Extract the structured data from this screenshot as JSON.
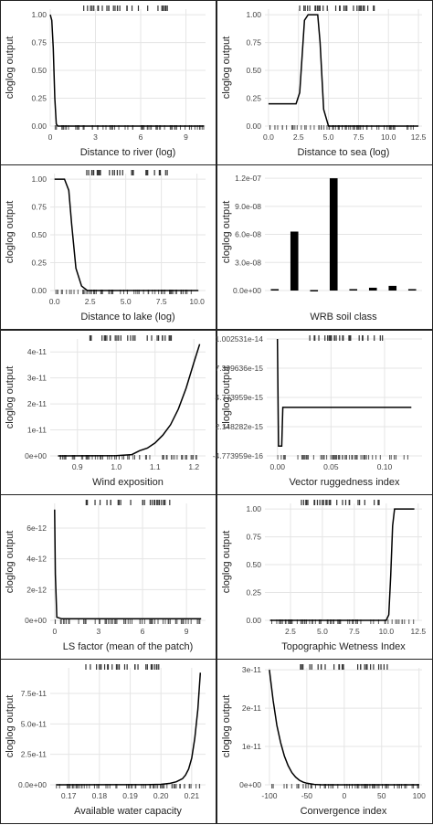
{
  "chart_data": [
    {
      "type": "line",
      "xlabel": "Distance to river (log)",
      "ylabel": "cloglog output",
      "xlim": [
        0,
        10.3
      ],
      "ylim": [
        0,
        1.05
      ],
      "xticks": [
        {
          "v": 0,
          "l": "0"
        },
        {
          "v": 3,
          "l": "3"
        },
        {
          "v": 6,
          "l": "6"
        },
        {
          "v": 9,
          "l": "9"
        }
      ],
      "yticks": [
        {
          "v": 0,
          "l": "0.00"
        },
        {
          "v": 0.25,
          "l": "0.25"
        },
        {
          "v": 0.5,
          "l": "0.50"
        },
        {
          "v": 0.75,
          "l": "0.75"
        },
        {
          "v": 1,
          "l": "1.00"
        }
      ],
      "x": [
        0,
        0.1,
        0.2,
        0.3,
        0.4,
        0.5,
        10.2
      ],
      "y": [
        1.0,
        0.95,
        0.7,
        0.25,
        0.02,
        0.0,
        0.0
      ]
    },
    {
      "type": "line",
      "xlabel": "Distance to sea (log)",
      "ylabel": "cloglog output",
      "xlim": [
        -0.3,
        12.8
      ],
      "ylim": [
        0,
        1.05
      ],
      "xticks": [
        {
          "v": 0,
          "l": "0.0"
        },
        {
          "v": 2.5,
          "l": "2.5"
        },
        {
          "v": 5,
          "l": "5.0"
        },
        {
          "v": 7.5,
          "l": "7.5"
        },
        {
          "v": 10,
          "l": "10.0"
        },
        {
          "v": 12.5,
          "l": "12.5"
        }
      ],
      "yticks": [
        {
          "v": 0,
          "l": "0.00"
        },
        {
          "v": 0.25,
          "l": "0.25"
        },
        {
          "v": 0.5,
          "l": "0.50"
        },
        {
          "v": 0.75,
          "l": "0.75"
        },
        {
          "v": 1,
          "l": "1.00"
        }
      ],
      "x": [
        0,
        2.3,
        2.6,
        3.0,
        3.3,
        4.1,
        4.3,
        4.6,
        5.0,
        12.5
      ],
      "y": [
        0.2,
        0.2,
        0.3,
        0.95,
        1.0,
        1.0,
        0.75,
        0.15,
        0.0,
        0.0
      ]
    },
    {
      "type": "line",
      "xlabel": "Distance to lake (log)",
      "ylabel": "cloglog output",
      "xlim": [
        -0.3,
        10.6
      ],
      "ylim": [
        0,
        1.05
      ],
      "xticks": [
        {
          "v": 0,
          "l": "0.0"
        },
        {
          "v": 2.5,
          "l": "2.5"
        },
        {
          "v": 5,
          "l": "5.0"
        },
        {
          "v": 7.5,
          "l": "7.5"
        },
        {
          "v": 10,
          "l": "10.0"
        }
      ],
      "yticks": [
        {
          "v": 0,
          "l": "0.00"
        },
        {
          "v": 0.25,
          "l": "0.25"
        },
        {
          "v": 0.5,
          "l": "0.50"
        },
        {
          "v": 0.75,
          "l": "0.75"
        },
        {
          "v": 1,
          "l": "1.00"
        }
      ],
      "x": [
        0,
        0.7,
        1.0,
        1.2,
        1.5,
        1.9,
        2.3,
        10.1
      ],
      "y": [
        1.0,
        1.0,
        0.9,
        0.6,
        0.2,
        0.04,
        0.0,
        0.0
      ]
    },
    {
      "type": "bar",
      "xlabel": "WRB soil class",
      "ylabel": "cloglog output",
      "ylim": [
        0,
        1.25e-07
      ],
      "yticks": [
        {
          "v": 0,
          "l": "0.0e+00"
        },
        {
          "v": 3e-08,
          "l": "3.0e-08"
        },
        {
          "v": 6e-08,
          "l": "6.0e-08"
        },
        {
          "v": 9e-08,
          "l": "9.0e-08"
        },
        {
          "v": 1.2e-07,
          "l": "1.2e-07"
        }
      ],
      "values": [
        1.5e-09,
        6.3e-08,
        5e-10,
        1.2e-07,
        1.5e-09,
        3e-09,
        5e-09,
        1.5e-09
      ]
    },
    {
      "type": "line",
      "xlabel": "Wind exposition",
      "ylabel": "cloglog output",
      "xlim": [
        0.83,
        1.23
      ],
      "ylim": [
        0,
        4.5e-11
      ],
      "xticks": [
        {
          "v": 0.9,
          "l": "0.9"
        },
        {
          "v": 1.0,
          "l": "1.0"
        },
        {
          "v": 1.1,
          "l": "1.1"
        },
        {
          "v": 1.2,
          "l": "1.2"
        }
      ],
      "yticks": [
        {
          "v": 0,
          "l": "0e+00"
        },
        {
          "v": 1e-11,
          "l": "1e-11"
        },
        {
          "v": 2e-11,
          "l": "2e-11"
        },
        {
          "v": 3e-11,
          "l": "3e-11"
        },
        {
          "v": 4e-11,
          "l": "4e-11"
        }
      ],
      "x": [
        0.85,
        1.0,
        1.04,
        1.06,
        1.08,
        1.1,
        1.12,
        1.14,
        1.16,
        1.18,
        1.2,
        1.215
      ],
      "y": [
        0,
        1e-13,
        5e-13,
        2e-12,
        3e-12,
        5e-12,
        8e-12,
        1.2e-11,
        1.8e-11,
        2.6e-11,
        3.6e-11,
        4.3e-11
      ]
    },
    {
      "type": "line",
      "xlabel": "Vector ruggedness index",
      "ylabel": "cloglog output",
      "xlim": [
        -0.01,
        0.135
      ],
      "ylim": [
        -4.773959e-16,
        1.002531e-14
      ],
      "xticks": [
        {
          "v": 0,
          "l": "0.00"
        },
        {
          "v": 0.05,
          "l": "0.05"
        },
        {
          "v": 0.1,
          "l": "0.10"
        }
      ],
      "yticks": [
        {
          "v": -4.773959e-16,
          "l": "-4.773959e-16"
        },
        {
          "v": 2.148282e-15,
          "l": "2.148282e-15"
        },
        {
          "v": 4.773959e-15,
          "l": "4.773959e-15"
        },
        {
          "v": 7.399636e-15,
          "l": "7.399636e-15"
        },
        {
          "v": 1.002531e-14,
          "l": "1.002531e-14"
        }
      ],
      "x": [
        0,
        0.001,
        0.004,
        0.005,
        0.125
      ],
      "y": [
        1.002531e-14,
        4e-16,
        4e-16,
        3.88e-15,
        3.88e-15
      ]
    },
    {
      "type": "line",
      "xlabel": "LS factor (mean of the patch)",
      "ylabel": "cloglog output",
      "xlim": [
        -0.3,
        10.3
      ],
      "ylim": [
        0,
        7.6e-12
      ],
      "xticks": [
        {
          "v": 0,
          "l": "0"
        },
        {
          "v": 3,
          "l": "3"
        },
        {
          "v": 6,
          "l": "6"
        },
        {
          "v": 9,
          "l": "9"
        }
      ],
      "yticks": [
        {
          "v": 0,
          "l": "0e+00"
        },
        {
          "v": 2e-12,
          "l": "2e-12"
        },
        {
          "v": 4e-12,
          "l": "4e-12"
        },
        {
          "v": 6e-12,
          "l": "6e-12"
        }
      ],
      "x": [
        0,
        0.05,
        0.15,
        0.5,
        10
      ],
      "y": [
        7.2e-12,
        3e-12,
        2e-13,
        1e-13,
        1e-13
      ]
    },
    {
      "type": "line",
      "xlabel": "Topographic Wetness Index",
      "ylabel": "cloglog output",
      "xlim": [
        0.5,
        12.8
      ],
      "ylim": [
        0,
        1.05
      ],
      "xticks": [
        {
          "v": 2.5,
          "l": "2.5"
        },
        {
          "v": 5,
          "l": "5.0"
        },
        {
          "v": 7.5,
          "l": "7.5"
        },
        {
          "v": 10,
          "l": "10.0"
        },
        {
          "v": 12.5,
          "l": "12.5"
        }
      ],
      "yticks": [
        {
          "v": 0,
          "l": "0.00"
        },
        {
          "v": 0.25,
          "l": "0.25"
        },
        {
          "v": 0.5,
          "l": "0.50"
        },
        {
          "v": 0.75,
          "l": "0.75"
        },
        {
          "v": 1,
          "l": "1.00"
        }
      ],
      "x": [
        0.9,
        10.0,
        10.2,
        10.35,
        10.5,
        10.65,
        12.2
      ],
      "y": [
        0,
        0,
        0.05,
        0.4,
        0.85,
        1.0,
        1.0
      ]
    },
    {
      "type": "line",
      "xlabel": "Available water capacity",
      "ylabel": "cloglog output",
      "xlim": [
        0.164,
        0.2145
      ],
      "ylim": [
        0,
        9.6e-11
      ],
      "xticks": [
        {
          "v": 0.17,
          "l": "0.17"
        },
        {
          "v": 0.18,
          "l": "0.18"
        },
        {
          "v": 0.19,
          "l": "0.19"
        },
        {
          "v": 0.2,
          "l": "0.20"
        },
        {
          "v": 0.21,
          "l": "0.21"
        }
      ],
      "yticks": [
        {
          "v": 0,
          "l": "0.0e+00"
        },
        {
          "v": 2.5e-11,
          "l": "2.5e-11"
        },
        {
          "v": 5e-11,
          "l": "5.0e-11"
        },
        {
          "v": 7.5e-11,
          "l": "7.5e-11"
        }
      ],
      "x": [
        0.166,
        0.195,
        0.2,
        0.203,
        0.205,
        0.207,
        0.208,
        0.209,
        0.21,
        0.211,
        0.212,
        0.2128
      ],
      "y": [
        0,
        1e-13,
        4e-13,
        1.2e-12,
        2.5e-12,
        5e-12,
        8e-12,
        1.3e-11,
        2.2e-11,
        3.8e-11,
        6.2e-11,
        9.2e-11
      ]
    },
    {
      "type": "line",
      "xlabel": "Convergence index",
      "ylabel": "cloglog output",
      "xlim": [
        -106,
        104
      ],
      "ylim": [
        0,
        3.05e-11
      ],
      "xticks": [
        {
          "v": -100,
          "l": "-100"
        },
        {
          "v": -50,
          "l": "-50"
        },
        {
          "v": 0,
          "l": "0"
        },
        {
          "v": 50,
          "l": "50"
        },
        {
          "v": 100,
          "l": "100"
        }
      ],
      "yticks": [
        {
          "v": 0,
          "l": "0e+00"
        },
        {
          "v": 1e-11,
          "l": "1e-11"
        },
        {
          "v": 2e-11,
          "l": "2e-11"
        },
        {
          "v": 3e-11,
          "l": "3e-11"
        }
      ],
      "x": [
        -100,
        -95,
        -90,
        -85,
        -80,
        -75,
        -70,
        -65,
        -60,
        -55,
        -50,
        -40,
        -30,
        100
      ],
      "y": [
        3e-11,
        2.2e-11,
        1.55e-11,
        1.1e-11,
        7.5e-12,
        5e-12,
        3.2e-12,
        2e-12,
        1.2e-12,
        7e-13,
        4e-13,
        1e-13,
        0,
        0
      ]
    }
  ]
}
